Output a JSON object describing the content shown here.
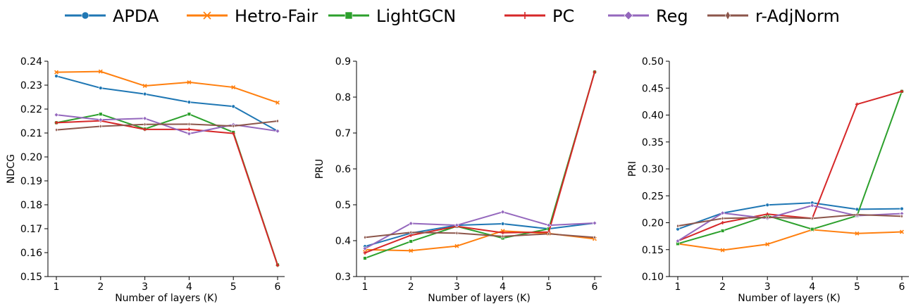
{
  "legend": [
    {
      "label": "APDA",
      "color": "#1f77b4",
      "marker": "circle"
    },
    {
      "label": "Hetro-Fair",
      "color": "#ff7f0e",
      "marker": "x"
    },
    {
      "label": "LightGCN",
      "color": "#2ca02c",
      "marker": "square"
    },
    {
      "label": "PC",
      "color": "#d62728",
      "marker": "plus"
    },
    {
      "label": "Reg",
      "color": "#9467bd",
      "marker": "diamond"
    },
    {
      "label": "r-AdjNorm",
      "color": "#8c564b",
      "marker": "thin-diamond"
    }
  ],
  "chart_data": [
    {
      "type": "line",
      "title": "",
      "xlabel": "Number of layers (K)",
      "ylabel": "NDCG",
      "x": [
        1,
        2,
        3,
        4,
        5,
        6
      ],
      "xticks": [
        "1",
        "2",
        "3",
        "4",
        "5",
        "6"
      ],
      "ylim": [
        0.15,
        0.24
      ],
      "yticks": [
        "0.15",
        "0.16",
        "0.17",
        "0.18",
        "0.19",
        "0.20",
        "0.21",
        "0.22",
        "0.23",
        "0.24"
      ],
      "series": [
        {
          "name": "APDA",
          "values": [
            0.2338,
            0.2288,
            0.2263,
            0.2229,
            0.2211,
            0.2108
          ]
        },
        {
          "name": "Hetro-Fair",
          "values": [
            0.2354,
            0.2357,
            0.2297,
            0.2312,
            0.2291,
            0.2227
          ]
        },
        {
          "name": "LightGCN",
          "values": [
            0.2143,
            0.2179,
            0.2117,
            0.2179,
            0.2103,
            0.1549
          ]
        },
        {
          "name": "PC",
          "values": [
            0.2143,
            0.2151,
            0.2115,
            0.2115,
            0.2098,
            0.1547
          ]
        },
        {
          "name": "Reg",
          "values": [
            0.2176,
            0.2155,
            0.2161,
            0.2097,
            0.2135,
            0.2108
          ]
        },
        {
          "name": "r-AdjNorm",
          "values": [
            0.2113,
            0.2128,
            0.2136,
            0.2137,
            0.2129,
            0.215
          ]
        }
      ]
    },
    {
      "type": "line",
      "title": "",
      "xlabel": "Number of layers (K)",
      "ylabel": "PRU",
      "x": [
        1,
        2,
        3,
        4,
        5,
        6
      ],
      "xticks": [
        "1",
        "2",
        "3",
        "4",
        "5",
        "6"
      ],
      "ylim": [
        0.3,
        0.9
      ],
      "yticks": [
        "0.3",
        "0.4",
        "0.5",
        "0.6",
        "0.7",
        "0.8",
        "0.9"
      ],
      "series": [
        {
          "name": "APDA",
          "values": [
            0.384,
            0.421,
            0.443,
            0.447,
            0.433,
            0.449
          ]
        },
        {
          "name": "Hetro-Fair",
          "values": [
            0.375,
            0.372,
            0.385,
            0.427,
            0.42,
            0.405
          ]
        },
        {
          "name": "LightGCN",
          "values": [
            0.351,
            0.398,
            0.44,
            0.407,
            0.433,
            0.87
          ]
        },
        {
          "name": "PC",
          "values": [
            0.366,
            0.415,
            0.44,
            0.422,
            0.424,
            0.87
          ]
        },
        {
          "name": "Reg",
          "values": [
            0.378,
            0.448,
            0.443,
            0.48,
            0.443,
            0.449
          ]
        },
        {
          "name": "r-AdjNorm",
          "values": [
            0.409,
            0.423,
            0.421,
            0.412,
            0.419,
            0.409
          ]
        }
      ]
    },
    {
      "type": "line",
      "title": "",
      "xlabel": "Number of layers (K)",
      "ylabel": "PRI",
      "x": [
        1,
        2,
        3,
        4,
        5,
        6
      ],
      "xticks": [
        "1",
        "2",
        "3",
        "4",
        "5",
        "6"
      ],
      "ylim": [
        0.1,
        0.5
      ],
      "yticks": [
        "0.10",
        "0.15",
        "0.20",
        "0.25",
        "0.30",
        "0.35",
        "0.40",
        "0.45",
        "0.50"
      ],
      "series": [
        {
          "name": "APDA",
          "values": [
            0.188,
            0.218,
            0.233,
            0.237,
            0.225,
            0.226
          ]
        },
        {
          "name": "Hetro-Fair",
          "values": [
            0.161,
            0.149,
            0.16,
            0.187,
            0.18,
            0.183
          ]
        },
        {
          "name": "LightGCN",
          "values": [
            0.161,
            0.185,
            0.213,
            0.188,
            0.213,
            0.444
          ]
        },
        {
          "name": "PC",
          "values": [
            0.166,
            0.2,
            0.216,
            0.208,
            0.42,
            0.444
          ]
        },
        {
          "name": "Reg",
          "values": [
            0.166,
            0.218,
            0.208,
            0.232,
            0.213,
            0.217
          ]
        },
        {
          "name": "r-AdjNorm",
          "values": [
            0.194,
            0.208,
            0.21,
            0.208,
            0.215,
            0.212
          ]
        }
      ]
    }
  ]
}
